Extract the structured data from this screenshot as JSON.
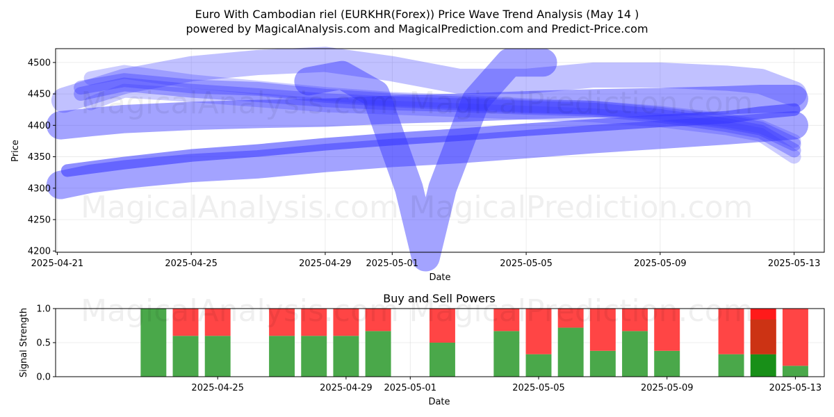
{
  "chart_data": [
    {
      "type": "area",
      "title_line1": "Euro With Cambodian riel (EURKHR(Forex)) Price Wave Trend Analysis (May 14 )",
      "title_line2": "powered by MagicalAnalysis.com and MagicalPrediction.com and Predict-Price.com",
      "xlabel": "Date",
      "ylabel": "Price",
      "x_ticks": [
        "2025-04-21",
        "2025-04-25",
        "2025-04-29",
        "2025-05-01",
        "2025-05-05",
        "2025-05-09",
        "2025-05-13"
      ],
      "x_tick_days": [
        0,
        4,
        8,
        10,
        14,
        18,
        22
      ],
      "y_ticks": [
        4200,
        4250,
        4300,
        4350,
        4400,
        4450,
        4500
      ],
      "ylim": [
        4198,
        4522
      ],
      "xlim_days": [
        -0.05,
        22.9
      ],
      "grid": true,
      "watermarks": [
        "MagicalAnalysis.com",
        "MagicalPrediction.com"
      ],
      "series": [
        {
          "name": "wave-upper-band",
          "x_days": [
            0.1,
            1,
            2,
            4,
            6,
            8,
            10,
            12,
            14,
            16,
            18,
            20,
            21,
            22
          ],
          "values": [
            4400,
            4405,
            4410,
            4415,
            4418,
            4420,
            4425,
            4428,
            4432,
            4435,
            4437,
            4440,
            4442,
            4442
          ],
          "width_price": 45,
          "opacity": 0.45
        },
        {
          "name": "wave-lower-band",
          "x_days": [
            0.1,
            1,
            2,
            4,
            6,
            8,
            10,
            12,
            14,
            16,
            18,
            20,
            21,
            22
          ],
          "values": [
            4305,
            4315,
            4322,
            4332,
            4338,
            4348,
            4356,
            4362,
            4370,
            4378,
            4385,
            4392,
            4396,
            4400
          ],
          "width_price": 45,
          "opacity": 0.45
        },
        {
          "name": "wave-trend-main",
          "x_days": [
            0.3,
            2,
            4,
            6,
            8,
            10,
            12,
            14,
            16,
            18,
            20,
            21,
            22
          ],
          "values": [
            4328,
            4340,
            4352,
            4360,
            4370,
            4378,
            4385,
            4393,
            4400,
            4407,
            4413,
            4420,
            4425
          ],
          "width_price": 20,
          "opacity": 0.55
        },
        {
          "name": "wave-fan-1",
          "x_days": [
            0.7,
            2,
            4,
            6,
            8,
            10,
            12,
            14,
            16,
            18,
            20,
            21,
            22
          ],
          "values": [
            4460,
            4472,
            4462,
            4458,
            4447,
            4440,
            4435,
            4430,
            4428,
            4418,
            4405,
            4395,
            4370
          ],
          "width_price": 22,
          "opacity": 0.35
        },
        {
          "name": "wave-fan-2",
          "x_days": [
            0.7,
            2,
            4,
            6,
            8,
            10,
            12,
            14,
            16,
            18,
            20,
            21,
            22
          ],
          "values": [
            4450,
            4465,
            4455,
            4448,
            4440,
            4435,
            4432,
            4428,
            4425,
            4415,
            4400,
            4390,
            4360
          ],
          "width_price": 22,
          "opacity": 0.35
        },
        {
          "name": "wave-fan-3",
          "x_days": [
            1,
            2,
            4,
            6,
            8,
            10,
            12,
            14,
            16,
            18,
            20,
            21,
            22
          ],
          "values": [
            4475,
            4485,
            4470,
            4460,
            4450,
            4442,
            4438,
            4432,
            4428,
            4420,
            4408,
            4398,
            4375
          ],
          "width_price": 22,
          "opacity": 0.25
        },
        {
          "name": "wave-fan-4",
          "x_days": [
            1,
            2,
            4,
            6,
            8,
            10,
            12,
            14,
            16,
            18,
            20,
            21,
            22
          ],
          "values": [
            4435,
            4455,
            4448,
            4440,
            4432,
            4428,
            4424,
            4420,
            4416,
            4408,
            4395,
            4385,
            4350
          ],
          "width_price": 22,
          "opacity": 0.25
        },
        {
          "name": "wave-top-arc",
          "x_days": [
            0.2,
            2,
            4,
            6,
            8,
            10,
            12,
            14,
            16,
            18,
            20,
            21,
            22
          ],
          "values": [
            4440,
            4470,
            4490,
            4500,
            4505,
            4490,
            4470,
            4470,
            4480,
            4480,
            4475,
            4470,
            4450
          ],
          "width_price": 40,
          "opacity": 0.3
        },
        {
          "name": "wave-v-dip",
          "x_days": [
            7.5,
            8.5,
            9.5,
            10.5,
            11,
            11.5,
            12.5,
            13.5,
            14.5
          ],
          "values": [
            4470,
            4480,
            4450,
            4300,
            4190,
            4300,
            4440,
            4500,
            4500
          ],
          "width_price": 45,
          "opacity": 0.45
        }
      ]
    },
    {
      "type": "bar",
      "title": "Buy and Sell Powers",
      "xlabel": "Date",
      "ylabel": "Signal Strength",
      "ylim": [
        0,
        1.0
      ],
      "y_ticks": [
        "0.0",
        "0.5",
        "1.0"
      ],
      "x_ticks": [
        "2025-04-25",
        "2025-04-29",
        "2025-05-01",
        "2025-05-05",
        "2025-05-09",
        "2025-05-13"
      ],
      "x_tick_days": [
        4,
        8,
        10,
        14,
        18,
        22
      ],
      "xlim_days": [
        -1.05,
        22.9
      ],
      "colors": {
        "buy": "#4aa84a",
        "sell": "#ff4545",
        "buy_strong": "#188f18",
        "sell_strong": "#ff1a1a",
        "overlap": "#cc3314"
      },
      "bars": [
        {
          "day": 2,
          "buy": 1.0,
          "sell": 0.0
        },
        {
          "day": 3,
          "buy": 0.6,
          "sell": 0.4
        },
        {
          "day": 4,
          "buy": 0.6,
          "sell": 0.4
        },
        {
          "day": 6,
          "buy": 0.6,
          "sell": 0.4
        },
        {
          "day": 7,
          "buy": 0.6,
          "sell": 0.4
        },
        {
          "day": 8,
          "buy": 0.6,
          "sell": 0.4
        },
        {
          "day": 9,
          "buy": 0.67,
          "sell": 0.33
        },
        {
          "day": 11,
          "buy": 0.5,
          "sell": 0.5
        },
        {
          "day": 13,
          "buy": 0.67,
          "sell": 0.33
        },
        {
          "day": 14,
          "buy": 0.33,
          "sell": 0.67
        },
        {
          "day": 15,
          "buy": 0.72,
          "sell": 0.28
        },
        {
          "day": 16,
          "buy": 0.38,
          "sell": 0.62
        },
        {
          "day": 17,
          "buy": 0.67,
          "sell": 0.33
        },
        {
          "day": 18,
          "buy": 0.38,
          "sell": 0.62
        },
        {
          "day": 20,
          "buy": 0.33,
          "sell": 0.67
        },
        {
          "day": 21,
          "buy": 0.33,
          "sell": 0.67,
          "strong": true
        },
        {
          "day": 22,
          "buy": 0.16,
          "sell": 0.84
        }
      ]
    }
  ]
}
